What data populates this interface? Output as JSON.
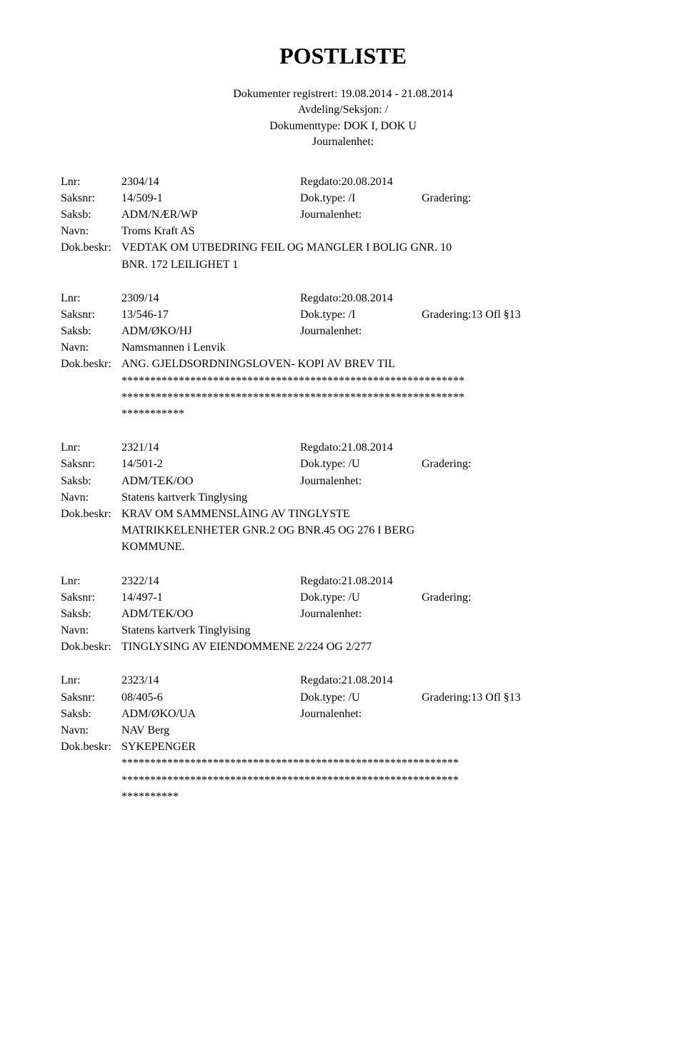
{
  "title": "POSTLISTE",
  "header": {
    "line1": "Dokumenter registrert: 19.08.2014 - 21.08.2014",
    "line2": "Avdeling/Seksjon: /",
    "line3": "Dokumenttype: DOK I, DOK U",
    "line4": "Journalenhet:"
  },
  "labels": {
    "lnr": "Lnr:",
    "saksnr": "Saksnr:",
    "saksb": "Saksb:",
    "navn": "Navn:",
    "dokbeskr": "Dok.beskr:",
    "regdato": "Regdato:",
    "doktype": "Dok.type:",
    "gradering": "Gradering:",
    "journalenhet": "Journalenhet:"
  },
  "entries": [
    {
      "lnr": "2304/14",
      "regdato": "Regdato:20.08.2014",
      "saksnr": "14/509-1",
      "doktype": "Dok.type: /I",
      "gradering": "Gradering:",
      "saksb": "ADM/NÆR/WP",
      "journalenhet": "Journalenhet:",
      "navn": "Troms Kraft AS",
      "dokbeskr": "VEDTAK OM UTBEDRING FEIL OG MANGLER I BOLIG GNR. 10",
      "dokbeskr_cont": "BNR. 172 LEILIGHET 1",
      "stars": false
    },
    {
      "lnr": "2309/14",
      "regdato": "Regdato:20.08.2014",
      "saksnr": "13/546-17",
      "doktype": "Dok.type: /I",
      "gradering": "Gradering:13 Ofl §13",
      "saksb": "ADM/ØKO/HJ",
      "journalenhet": "Journalenhet:",
      "navn": "Namsmannen i Lenvik",
      "dokbeskr": "ANG. GJELDSORDNINGSLOVEN- KOPI AV BREV TIL",
      "dokbeskr_cont": "",
      "stars": true,
      "star_lines": [
        "************************************************************",
        "************************************************************",
        "***********"
      ]
    },
    {
      "lnr": "2321/14",
      "regdato": "Regdato:21.08.2014",
      "saksnr": "14/501-2",
      "doktype": "Dok.type: /U",
      "gradering": "Gradering:",
      "saksb": "ADM/TEK/OO",
      "journalenhet": "Journalenhet:",
      "navn": "Statens kartverk Tinglysing",
      "dokbeskr": "KRAV OM SAMMENSLÅING  AV TINGLYSTE",
      "dokbeskr_cont": "MATRIKKELENHETER GNR.2 OG BNR.45 OG 276 I BERG",
      "dokbeskr_cont2": "KOMMUNE.",
      "stars": false
    },
    {
      "lnr": "2322/14",
      "regdato": "Regdato:21.08.2014",
      "saksnr": "14/497-1",
      "doktype": "Dok.type: /U",
      "gradering": "Gradering:",
      "saksb": "ADM/TEK/OO",
      "journalenhet": "Journalenhet:",
      "navn": "Statens kartverk Tinglyising",
      "dokbeskr": "TINGLYSING AV EIENDOMMENE 2/224 OG 2/277",
      "dokbeskr_cont": "",
      "stars": false
    },
    {
      "lnr": "2323/14",
      "regdato": "Regdato:21.08.2014",
      "saksnr": "08/405-6",
      "doktype": "Dok.type: /U",
      "gradering": "Gradering:13 Ofl §13",
      "saksb": "ADM/ØKO/UA",
      "journalenhet": "Journalenhet:",
      "navn": "NAV Berg",
      "dokbeskr": "SYKEPENGER",
      "dokbeskr_cont": "",
      "stars": true,
      "star_lines": [
        "***********************************************************",
        "***********************************************************",
        "**********"
      ]
    }
  ]
}
